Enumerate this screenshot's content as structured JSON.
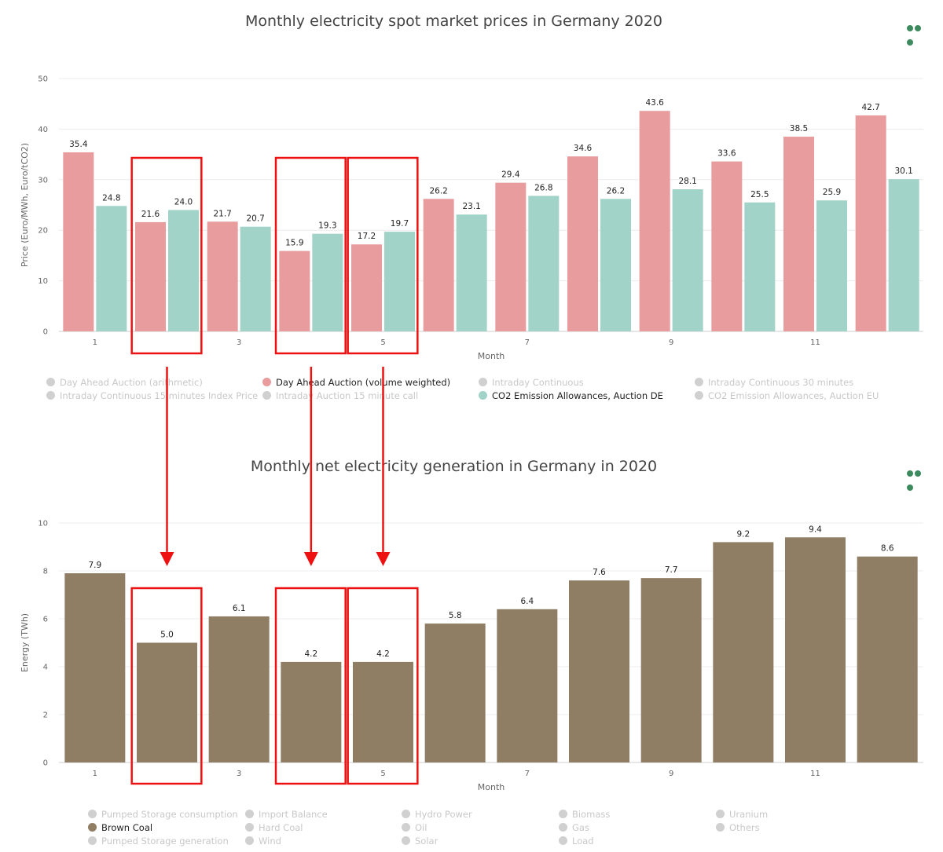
{
  "chart_data": [
    {
      "type": "bar",
      "title": "Monthly electricity spot market prices in Germany 2020",
      "xlabel": "Month",
      "ylabel": "Price (Euro/MWh, Euro/tCO2)",
      "ylim": [
        0,
        50
      ],
      "yticks": [
        0,
        10,
        20,
        30,
        40,
        50
      ],
      "categories": [
        "1",
        "2",
        "3",
        "4",
        "5",
        "6",
        "7",
        "8",
        "9",
        "10",
        "11",
        "12"
      ],
      "xtick_labels": [
        "1",
        "",
        "3",
        "",
        "5",
        "",
        "7",
        "",
        "9",
        "",
        "11",
        ""
      ],
      "series": [
        {
          "name": "Day Ahead Auction (volume weighted)",
          "color": "#e89c9d",
          "values": [
            35.4,
            21.6,
            21.7,
            15.9,
            17.2,
            26.2,
            29.4,
            34.6,
            43.6,
            33.6,
            38.5,
            42.7
          ],
          "labels": [
            "35.4",
            "21.6",
            "21.7",
            "15.9",
            "17.2",
            "26.2",
            "29.4",
            "34.6",
            "43.6",
            "33.6",
            "38.5",
            "42.7"
          ]
        },
        {
          "name": "CO2 Emission Allowances, Auction DE",
          "color": "#a1d3c8",
          "values": [
            24.8,
            24.0,
            20.7,
            19.3,
            19.7,
            23.1,
            26.8,
            26.2,
            28.1,
            25.5,
            25.9,
            30.1
          ],
          "labels": [
            "24.8",
            "24.0",
            "20.7",
            "19.3",
            "19.7",
            "23.1",
            "26.8",
            "26.2",
            "28.1",
            "25.5",
            "25.9",
            "30.1"
          ]
        }
      ],
      "legend": [
        {
          "label": "Day Ahead Auction (arithmetic)",
          "active": false
        },
        {
          "label": "Day Ahead Auction (volume weighted)",
          "active": true,
          "color": "#e89c9d"
        },
        {
          "label": "Intraday Continuous",
          "active": false
        },
        {
          "label": "Intraday Continuous 30 minutes",
          "active": false
        },
        {
          "label": "Intraday Continuous 15 minutes Index Price",
          "active": false
        },
        {
          "label": "Intraday Auction 15 minute call",
          "active": false
        },
        {
          "label": "CO2 Emission Allowances, Auction DE",
          "active": true,
          "color": "#a1d3c8"
        },
        {
          "label": "CO2 Emission Allowances, Auction EU",
          "active": false
        }
      ],
      "grid": true
    },
    {
      "type": "bar",
      "title": "Monthly net electricity generation in Germany in 2020",
      "xlabel": "Month",
      "ylabel": "Energy (TWh)",
      "ylim": [
        0,
        10
      ],
      "yticks": [
        0,
        2,
        4,
        6,
        8,
        10
      ],
      "categories": [
        "1",
        "2",
        "3",
        "4",
        "5",
        "6",
        "7",
        "8",
        "9",
        "10",
        "11",
        "12"
      ],
      "xtick_labels": [
        "1",
        "",
        "3",
        "",
        "5",
        "",
        "7",
        "",
        "9",
        "",
        "11",
        ""
      ],
      "series": [
        {
          "name": "Brown Coal",
          "color": "#8f7d64",
          "values": [
            7.9,
            5.0,
            6.1,
            4.2,
            4.2,
            5.8,
            6.4,
            7.6,
            7.7,
            9.2,
            9.4,
            8.6
          ],
          "labels": [
            "7.9",
            "5.0",
            "6.1",
            "4.2",
            "4.2",
            "5.8",
            "6.4",
            "7.6",
            "7.7",
            "9.2",
            "9.4",
            "8.6"
          ]
        }
      ],
      "legend": [
        {
          "label": "Pumped Storage consumption",
          "active": false
        },
        {
          "label": "Import Balance",
          "active": false
        },
        {
          "label": "Hydro Power",
          "active": false
        },
        {
          "label": "Biomass",
          "active": false
        },
        {
          "label": "Uranium",
          "active": false
        },
        {
          "label": "Brown Coal",
          "active": true,
          "color": "#8f7d64"
        },
        {
          "label": "Hard Coal",
          "active": false
        },
        {
          "label": "Oil",
          "active": false
        },
        {
          "label": "Gas",
          "active": false
        },
        {
          "label": "Others",
          "active": false
        },
        {
          "label": "Pumped Storage generation",
          "active": false
        },
        {
          "label": "Wind",
          "active": false
        },
        {
          "label": "Solar",
          "active": false
        },
        {
          "label": "Load",
          "active": false
        }
      ],
      "grid": true
    }
  ],
  "annotations": {
    "highlighted_months": [
      2,
      4,
      5
    ],
    "color": "#ee1111"
  }
}
